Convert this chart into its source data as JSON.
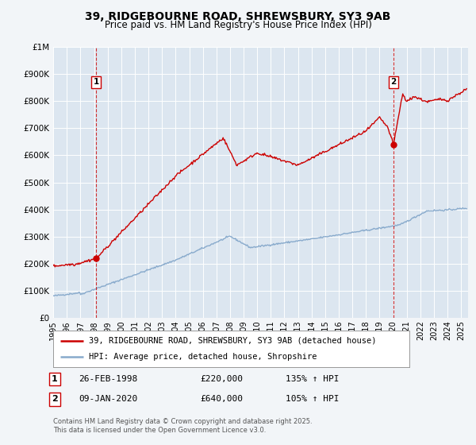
{
  "title_line1": "39, RIDGEBOURNE ROAD, SHREWSBURY, SY3 9AB",
  "title_line2": "Price paid vs. HM Land Registry's House Price Index (HPI)",
  "background_color": "#f2f5f8",
  "plot_bg_color": "#dce6f0",
  "grid_color": "#ffffff",
  "red_color": "#cc0000",
  "blue_color": "#88aacc",
  "vline_color": "#cc0000",
  "marker1_date": 1998.15,
  "marker1_value": 220000,
  "marker2_date": 2020.03,
  "marker2_value": 640000,
  "xmin": 1995,
  "xmax": 2025.5,
  "ymin": 0,
  "ymax": 1000000,
  "yticks": [
    0,
    100000,
    200000,
    300000,
    400000,
    500000,
    600000,
    700000,
    800000,
    900000,
    1000000
  ],
  "ytick_labels": [
    "£0",
    "£100K",
    "£200K",
    "£300K",
    "£400K",
    "£500K",
    "£600K",
    "£700K",
    "£800K",
    "£900K",
    "£1M"
  ],
  "legend_label_red": "39, RIDGEBOURNE ROAD, SHREWSBURY, SY3 9AB (detached house)",
  "legend_label_blue": "HPI: Average price, detached house, Shropshire",
  "transaction1_num": "1",
  "transaction1_date": "26-FEB-1998",
  "transaction1_price": "£220,000",
  "transaction1_hpi": "135% ↑ HPI",
  "transaction2_num": "2",
  "transaction2_date": "09-JAN-2020",
  "transaction2_price": "£640,000",
  "transaction2_hpi": "105% ↑ HPI",
  "footnote": "Contains HM Land Registry data © Crown copyright and database right 2025.\nThis data is licensed under the Open Government Licence v3.0."
}
